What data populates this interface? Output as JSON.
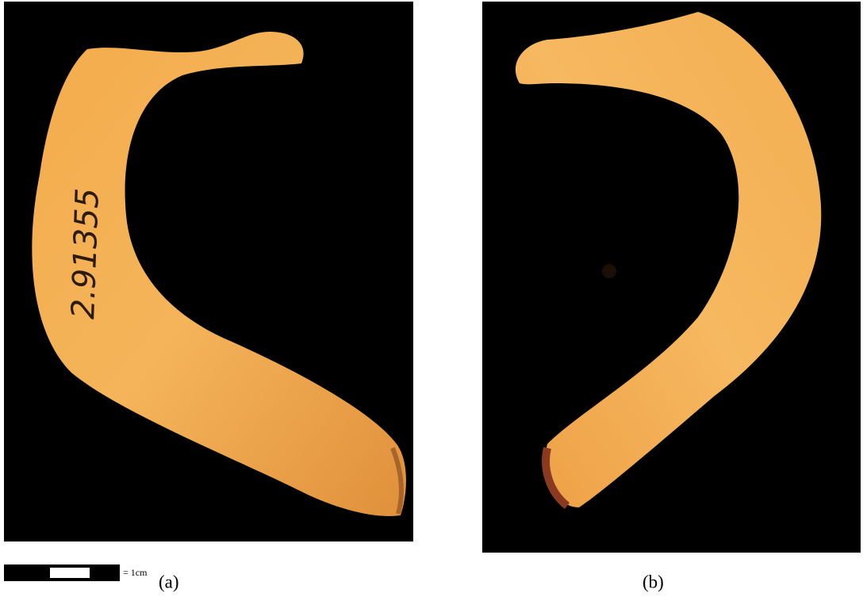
{
  "panels": [
    {
      "label": "(a)",
      "specimen_label": "2.91355"
    },
    {
      "label": "(b)"
    }
  ],
  "scale_bar": {
    "label": "= 1cm"
  }
}
